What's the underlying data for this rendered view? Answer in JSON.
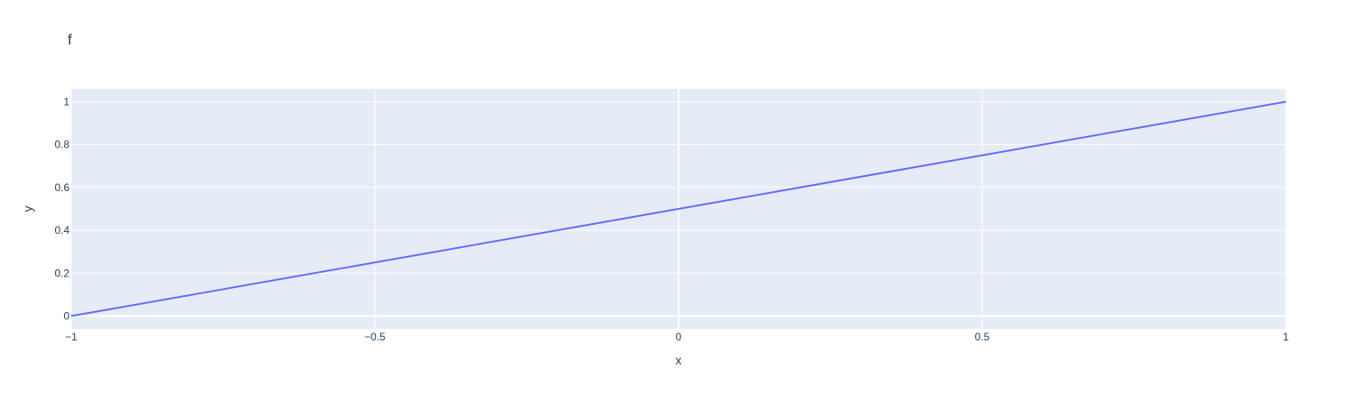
{
  "chart_data": {
    "type": "line",
    "title": "f",
    "xlabel": "x",
    "ylabel": "y",
    "xlim": [
      -1,
      1
    ],
    "ylim": [
      -0.06,
      1.06
    ],
    "x_ticks": [
      -1,
      -0.5,
      0,
      0.5,
      1
    ],
    "x_tick_labels": [
      "−1",
      "−0.5",
      "0",
      "0.5",
      "1"
    ],
    "y_ticks": [
      0,
      0.2,
      0.4,
      0.6,
      0.8,
      1
    ],
    "y_tick_labels": [
      "0",
      "0.2",
      "0.4",
      "0.6",
      "0.8",
      "1"
    ],
    "grid": true,
    "series": [
      {
        "x": [
          -1,
          -0.5,
          0,
          0.5,
          1
        ],
        "y": [
          0,
          0.25,
          0.5,
          0.75,
          1
        ]
      }
    ]
  },
  "colors": {
    "plot_background": "#e5ecf6",
    "grid": "#ffffff",
    "line": "#636efa",
    "text": "#2a3f5f"
  }
}
